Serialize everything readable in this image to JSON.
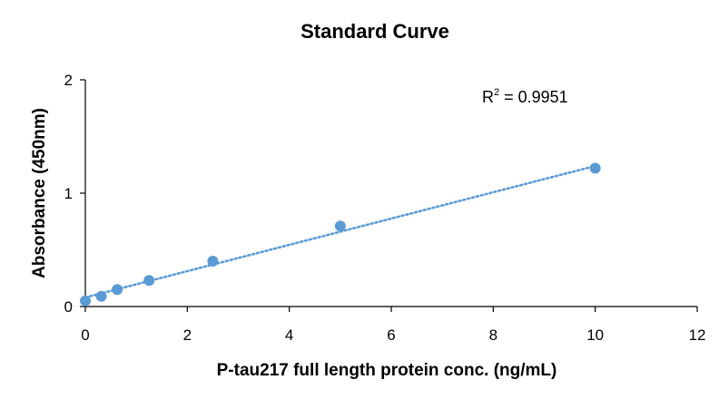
{
  "chart_data": {
    "type": "scatter",
    "title": "Standard Curve",
    "xlabel": "P-tau217 full length protein conc. (ng/mL)",
    "ylabel": "Absorbance (450nm)",
    "xlim": [
      0,
      12
    ],
    "ylim": [
      0,
      2
    ],
    "xticks": [
      "0",
      "2",
      "4",
      "6",
      "8",
      "10",
      "12"
    ],
    "yticks": [
      "0",
      "1",
      "2"
    ],
    "grid": false,
    "legend": "none",
    "series": [
      {
        "x": [
          0,
          0.3125,
          0.625,
          1.25,
          2.5,
          5,
          10
        ],
        "y": [
          0.05,
          0.09,
          0.15,
          0.23,
          0.4,
          0.71,
          1.22
        ],
        "color": "#5B9BD5"
      }
    ],
    "trendline": {
      "style": "dotted",
      "color": "#5B9BD5",
      "x": [
        0,
        10
      ],
      "y": [
        0.08,
        1.24
      ]
    },
    "annotation": {
      "r_label": "R",
      "r_sup": "2",
      "r_value": " = 0.9951"
    }
  }
}
